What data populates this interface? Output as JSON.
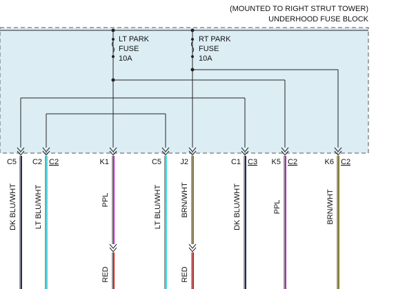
{
  "header": {
    "line1": "(MOUNTED TO RIGHT STRUT TOWER)",
    "line2": "UNDERHOOD FUSE BLOCK"
  },
  "fuses": [
    {
      "name": "LT PARK",
      "type": "FUSE",
      "rating": "10A"
    },
    {
      "name": "RT PARK",
      "type": "FUSE",
      "rating": "10A"
    }
  ],
  "pins": [
    {
      "pin": "C5",
      "conn": ""
    },
    {
      "pin": "C2",
      "conn": "C2"
    },
    {
      "pin": "K1",
      "conn": ""
    },
    {
      "pin": "C5",
      "conn": ""
    },
    {
      "pin": "J2",
      "conn": ""
    },
    {
      "pin": "C1",
      "conn": "C3"
    },
    {
      "pin": "K5",
      "conn": "C2"
    },
    {
      "pin": "K6",
      "conn": "C2"
    }
  ],
  "wires": [
    {
      "color": "DK BLU/WHT",
      "hex": "#1f2a6b"
    },
    {
      "color": "LT BLU/WHT",
      "hex": "#3fe0e8"
    },
    {
      "color": "PPL",
      "hex": "#c020c8"
    },
    {
      "color": "LT BLU/WHT",
      "hex": "#3fe0e8"
    },
    {
      "color": "BRN/WHT",
      "hex": "#8a7a30"
    },
    {
      "color": "DK BLU/WHT",
      "hex": "#1f2a6b"
    },
    {
      "color": "PPL",
      "hex": "#c020c8"
    },
    {
      "color": "BRN/WHT",
      "hex": "#8a7a30"
    }
  ],
  "lower_wires": [
    {
      "color": "RED",
      "hex": "#e01818"
    },
    {
      "color": "RED",
      "hex": "#e01818"
    }
  ],
  "colors": {
    "fuse_block_fill": "#dcedf4",
    "fuse_block_border": "#555555"
  }
}
